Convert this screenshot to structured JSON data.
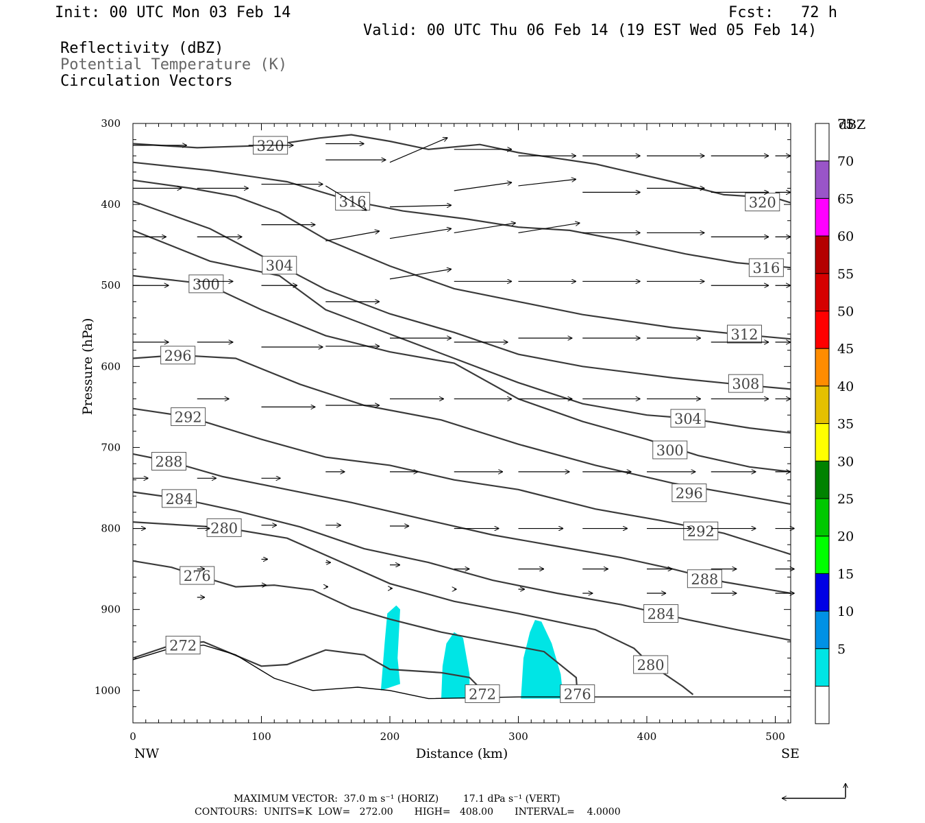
{
  "header": {
    "init": "Init: 00 UTC Mon 03 Feb 14",
    "fcst": "Fcst:   72 h",
    "valid": "Valid: 00 UTC Thu 06 Feb 14 (19 EST Wed 05 Feb 14)",
    "fields": [
      "Reflectivity (dBZ)",
      "Potential Temperature (K)",
      "Circulation Vectors"
    ]
  },
  "footer": {
    "max_vector": "MAXIMUM VECTOR:  37.0 m s⁻¹ (HORIZ)        17.1 dPa s⁻¹ (VERT)",
    "contours": "CONTOURS:  UNITS=K  LOW=   272.00       HIGH=   408.00       INTERVAL=    4.0000"
  },
  "colors": {
    "contour": "#3a3a3a",
    "echo": "#00e5e5",
    "colorbar": [
      "#ffffff",
      "#00e5e5",
      "#0091e5",
      "#0000e5",
      "#00ff00",
      "#00c800",
      "#008200",
      "#ffff00",
      "#e5c000",
      "#ff8c00",
      "#ff0000",
      "#d50000",
      "#b40000",
      "#ff00ff",
      "#9955c8",
      "#ffffff"
    ]
  },
  "chart_data": {
    "type": "cross-section",
    "xlabel": "Distance (km)",
    "ylabel": "Pressure (hPa)",
    "xlim": [
      0,
      512
    ],
    "ylim": [
      1040,
      300
    ],
    "xticks": [
      0,
      100,
      200,
      300,
      400,
      500
    ],
    "yticks": [
      300,
      400,
      500,
      600,
      700,
      800,
      900,
      1000
    ],
    "x_end_labels": {
      "left": "NW",
      "right": "SE"
    },
    "colorbar": {
      "title": "dBZ",
      "ticks": [
        5,
        10,
        15,
        20,
        25,
        30,
        35,
        40,
        45,
        50,
        55,
        60,
        65,
        70,
        75
      ]
    },
    "contour_labels": [
      {
        "value": "320",
        "x": 107,
        "p": 327
      },
      {
        "value": "320",
        "x": 490,
        "p": 397
      },
      {
        "value": "316",
        "x": 171,
        "p": 396
      },
      {
        "value": "316",
        "x": 493,
        "p": 478
      },
      {
        "value": "312",
        "x": 476,
        "p": 560
      },
      {
        "value": "308",
        "x": 477,
        "p": 621
      },
      {
        "value": "304",
        "x": 114,
        "p": 475
      },
      {
        "value": "304",
        "x": 432,
        "p": 664
      },
      {
        "value": "300",
        "x": 57,
        "p": 498
      },
      {
        "value": "300",
        "x": 418,
        "p": 703
      },
      {
        "value": "296",
        "x": 35,
        "p": 586
      },
      {
        "value": "296",
        "x": 433,
        "p": 756
      },
      {
        "value": "292",
        "x": 43,
        "p": 662
      },
      {
        "value": "292",
        "x": 442,
        "p": 803
      },
      {
        "value": "288",
        "x": 28,
        "p": 717
      },
      {
        "value": "288",
        "x": 445,
        "p": 862
      },
      {
        "value": "284",
        "x": 36,
        "p": 763
      },
      {
        "value": "284",
        "x": 411,
        "p": 905
      },
      {
        "value": "280",
        "x": 71,
        "p": 799
      },
      {
        "value": "280",
        "x": 403,
        "p": 968
      },
      {
        "value": "276",
        "x": 50,
        "p": 858
      },
      {
        "value": "276",
        "x": 346,
        "p": 1004
      },
      {
        "value": "272",
        "x": 39,
        "p": 944
      },
      {
        "value": "272",
        "x": 272,
        "p": 1004
      }
    ]
  }
}
